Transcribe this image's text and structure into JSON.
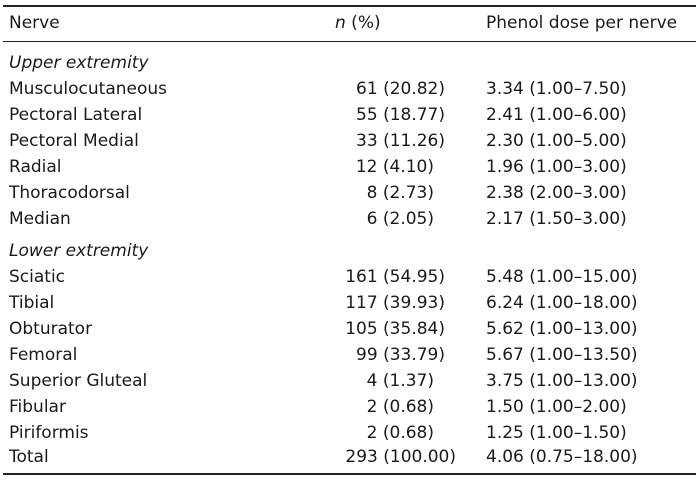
{
  "header": {
    "nerve": "Nerve",
    "n_symbol": "n",
    "n_suffix": " (%)",
    "dose": "Phenol dose per nerve"
  },
  "sections": [
    {
      "title": "Upper extremity",
      "rows": [
        {
          "nerve": "Musculocutaneous",
          "n": "61 (20.82)",
          "dose": "3.34 (1.00–7.50)"
        },
        {
          "nerve": "Pectoral Lateral",
          "n": "55 (18.77)",
          "dose": "2.41 (1.00–6.00)"
        },
        {
          "nerve": "Pectoral Medial",
          "n": "33 (11.26)",
          "dose": "2.30 (1.00–5.00)"
        },
        {
          "nerve": "Radial",
          "n": "12 (4.10)",
          "dose": "1.96 (1.00–3.00)"
        },
        {
          "nerve": "Thoracodorsal",
          "n": "8 (2.73)",
          "dose": "2.38 (2.00–3.00)"
        },
        {
          "nerve": "Median",
          "n": "6 (2.05)",
          "dose": "2.17 (1.50–3.00)"
        }
      ]
    },
    {
      "title": "Lower extremity",
      "rows": [
        {
          "nerve": "Sciatic",
          "n": "161 (54.95)",
          "dose": "5.48 (1.00–15.00)"
        },
        {
          "nerve": "Tibial",
          "n": "117 (39.93)",
          "dose": "6.24 (1.00–18.00)"
        },
        {
          "nerve": "Obturator",
          "n": "105 (35.84)",
          "dose": "5.62 (1.00–13.00)"
        },
        {
          "nerve": "Femoral",
          "n": "99 (33.79)",
          "dose": "5.67 (1.00–13.50)"
        },
        {
          "nerve": "Superior Gluteal",
          "n": "4 (1.37)",
          "dose": "3.75 (1.00–13.00)"
        },
        {
          "nerve": "Fibular",
          "n": "2 (0.68)",
          "dose": "1.50 (1.00–2.00)"
        },
        {
          "nerve": "Piriformis",
          "n": "2 (0.68)",
          "dose": "1.25 (1.00–1.50)"
        }
      ]
    }
  ],
  "total": {
    "nerve": "Total",
    "n": "293 (100.00)",
    "dose": "4.06 (0.75–18.00)"
  }
}
